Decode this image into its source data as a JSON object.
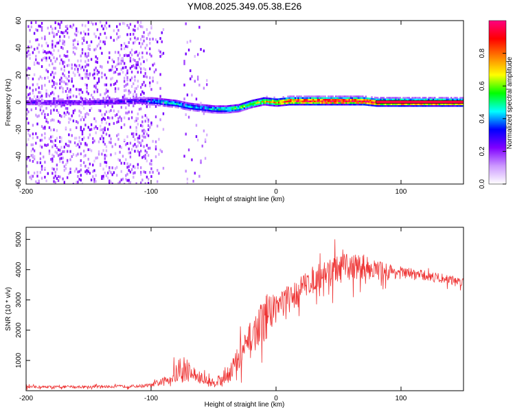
{
  "title": "YM08.2025.349.05.38.E26",
  "chart_data": [
    {
      "type": "heatmap",
      "name": "spectrogram",
      "xlabel": "Height of straight line (km)",
      "ylabel": "Frequency (Hz)",
      "xlim": [
        -200,
        150
      ],
      "ylim": [
        -60,
        60
      ],
      "xticks": [
        -200,
        -100,
        0,
        100
      ],
      "yticks": [
        -60,
        -40,
        -20,
        0,
        20,
        40,
        60
      ],
      "colorbar": {
        "label": "Normalized spectral amplitude",
        "range": [
          0.0,
          1.0
        ],
        "ticks": [
          "0.0",
          "0.2",
          "0.4",
          "0.6",
          "0.8"
        ],
        "tick_values": [
          0.0,
          0.2,
          0.4,
          0.6,
          0.8
        ],
        "colormap": [
          "#ffffff",
          "#cc99ff",
          "#8000ff",
          "#0000ff",
          "#00ffff",
          "#00ff00",
          "#ffff00",
          "#ff8000",
          "#ff0000",
          "#ff0080"
        ]
      },
      "ridge": {
        "description": "strong narrow-band signal near 0 Hz",
        "x": [
          -200,
          -150,
          -110,
          -100,
          -90,
          -80,
          -70,
          -60,
          -50,
          -40,
          -30,
          -20,
          -10,
          0,
          10,
          20,
          30,
          40,
          50,
          60,
          70,
          80,
          150
        ],
        "freq": [
          0,
          0,
          1,
          1,
          0,
          -1,
          -3,
          -4,
          -5,
          -5,
          -4,
          -1,
          1,
          0,
          1,
          1,
          1,
          1,
          1,
          1,
          1,
          0,
          0
        ],
        "amplitude": [
          0.25,
          0.25,
          0.3,
          0.4,
          0.45,
          0.45,
          0.42,
          0.4,
          0.45,
          0.5,
          0.55,
          0.6,
          0.7,
          0.75,
          0.85,
          0.9,
          0.95,
          0.95,
          0.95,
          0.95,
          0.95,
          0.95,
          0.95
        ]
      },
      "noise_region": {
        "x_from": -200,
        "x_to": -100,
        "amplitude": 0.2
      }
    },
    {
      "type": "line",
      "name": "snr",
      "xlabel": "Height of straight line (km)",
      "ylabel": "SNR (10 * v/v)",
      "xlim": [
        -200,
        150
      ],
      "ylim": [
        0,
        5400
      ],
      "xticks": [
        -200,
        -100,
        0,
        100
      ],
      "yticks": [
        1000,
        2000,
        3000,
        4000,
        5000
      ],
      "color": "#ee3333",
      "envelope": {
        "x": [
          -200,
          -150,
          -110,
          -100,
          -90,
          -80,
          -70,
          -60,
          -50,
          -40,
          -30,
          -20,
          -10,
          0,
          10,
          20,
          30,
          40,
          50,
          60,
          70,
          80,
          100,
          120,
          150
        ],
        "mean": [
          120,
          130,
          150,
          180,
          300,
          550,
          650,
          380,
          250,
          500,
          1000,
          1700,
          2400,
          2800,
          3000,
          3400,
          3700,
          3900,
          4000,
          4100,
          4100,
          4000,
          3900,
          3800,
          3600
        ],
        "spread": [
          60,
          60,
          70,
          90,
          200,
          450,
          500,
          300,
          200,
          450,
          700,
          900,
          900,
          800,
          700,
          600,
          600,
          650,
          700,
          650,
          600,
          450,
          300,
          250,
          200
        ]
      }
    }
  ]
}
